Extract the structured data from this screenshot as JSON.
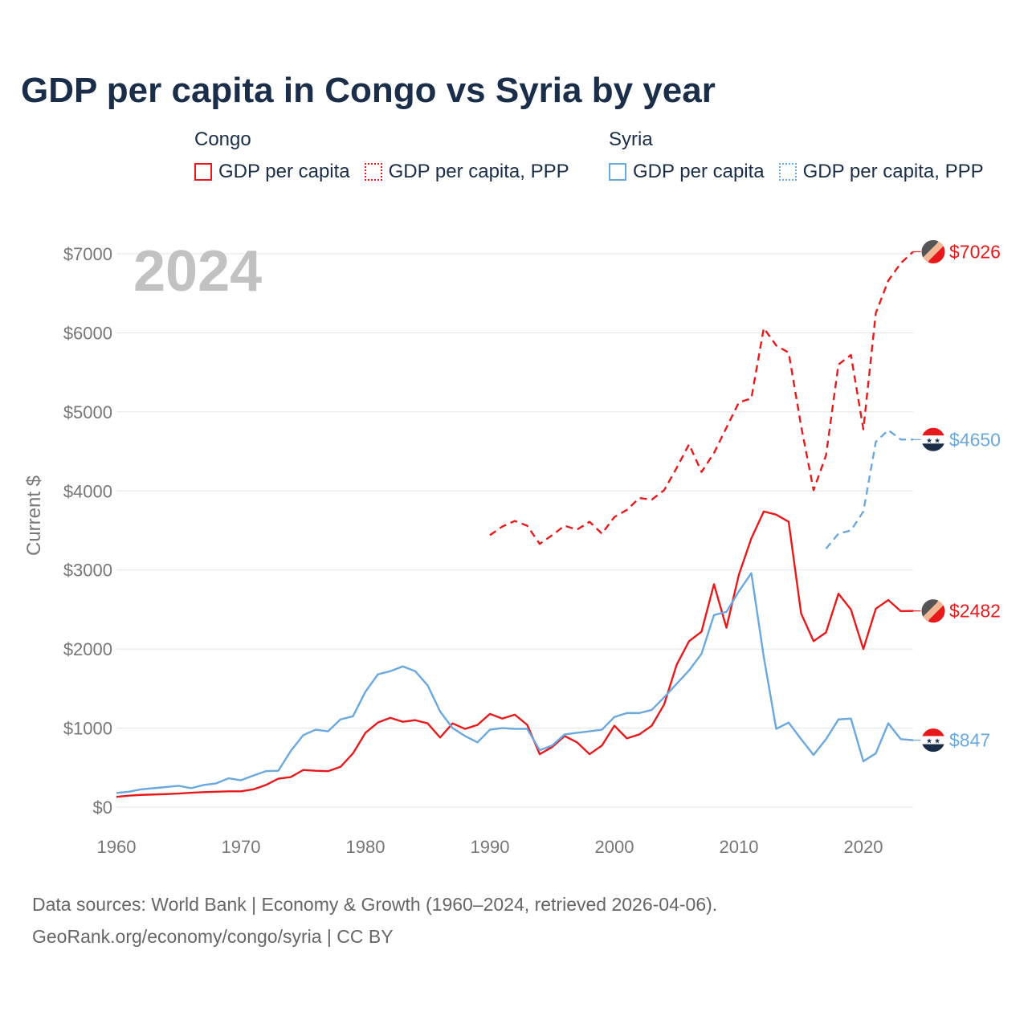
{
  "title": "GDP per capita in Congo vs Syria by year",
  "legend": {
    "congo": {
      "name": "Congo",
      "gdp": "GDP per capita",
      "ppp": "GDP per capita, PPP",
      "color": "#e8191a"
    },
    "syria": {
      "name": "Syria",
      "gdp": "GDP per capita",
      "ppp": "GDP per capita, PPP",
      "color": "#6aa8e0"
    }
  },
  "footer": {
    "line1": "Data sources: World Bank | Economy & Growth (1960–2024, retrieved 2026-04-06).",
    "line2": "GeoRank.org/economy/congo/syria | CC BY"
  },
  "chart_data": {
    "type": "line",
    "year_label": "2024",
    "ylabel": "Current $",
    "xlim": [
      1960,
      2024
    ],
    "ylim": [
      0,
      7000
    ],
    "x_ticks": [
      1960,
      1970,
      1980,
      1990,
      2000,
      2010,
      2020
    ],
    "x_tick_labels": [
      "1960",
      "1970",
      "1980",
      "1990",
      "2000",
      "2010",
      "2020"
    ],
    "y_ticks": [
      0,
      1000,
      2000,
      3000,
      4000,
      5000,
      6000,
      7000
    ],
    "y_tick_labels": [
      "$0",
      "$1000",
      "$2000",
      "$3000",
      "$4000",
      "$5000",
      "$6000",
      "$7000"
    ],
    "series": [
      {
        "name": "Congo GDP per capita",
        "color": "#e8191a",
        "dash": false,
        "end_label": "$2482",
        "marker": "congo",
        "x": [
          1960,
          1961,
          1962,
          1963,
          1964,
          1965,
          1966,
          1967,
          1968,
          1969,
          1970,
          1971,
          1972,
          1973,
          1974,
          1975,
          1976,
          1977,
          1978,
          1979,
          1980,
          1981,
          1982,
          1983,
          1984,
          1985,
          1986,
          1987,
          1988,
          1989,
          1990,
          1991,
          1992,
          1993,
          1994,
          1995,
          1996,
          1997,
          1998,
          1999,
          2000,
          2001,
          2002,
          2003,
          2004,
          2005,
          2006,
          2007,
          2008,
          2009,
          2010,
          2011,
          2012,
          2013,
          2014,
          2015,
          2016,
          2017,
          2018,
          2019,
          2020,
          2021,
          2022,
          2023,
          2024
        ],
        "values": [
          130,
          145,
          155,
          160,
          165,
          172,
          182,
          190,
          195,
          200,
          200,
          225,
          280,
          360,
          380,
          470,
          460,
          455,
          510,
          680,
          940,
          1070,
          1130,
          1080,
          1100,
          1060,
          880,
          1060,
          990,
          1040,
          1180,
          1120,
          1170,
          1040,
          670,
          760,
          900,
          820,
          670,
          780,
          1030,
          870,
          920,
          1030,
          1300,
          1800,
          2100,
          2220,
          2820,
          2270,
          2940,
          3400,
          3740,
          3700,
          3610,
          2450,
          2100,
          2210,
          2700,
          2500,
          2000,
          2510,
          2620,
          2480,
          2482
        ]
      },
      {
        "name": "Congo GDP per capita, PPP",
        "color": "#e8191a",
        "dash": true,
        "end_label": "$7026",
        "marker": "congo",
        "x": [
          1990,
          1991,
          1992,
          1993,
          1994,
          1995,
          1996,
          1997,
          1998,
          1999,
          2000,
          2001,
          2002,
          2003,
          2004,
          2005,
          2006,
          2007,
          2008,
          2009,
          2010,
          2011,
          2012,
          2013,
          2014,
          2015,
          2016,
          2017,
          2018,
          2019,
          2020,
          2021,
          2022,
          2023,
          2024
        ],
        "values": [
          3440,
          3550,
          3620,
          3560,
          3330,
          3440,
          3560,
          3510,
          3610,
          3460,
          3670,
          3760,
          3910,
          3890,
          4010,
          4290,
          4590,
          4240,
          4480,
          4800,
          5120,
          5170,
          6060,
          5840,
          5750,
          4820,
          4010,
          4450,
          5600,
          5720,
          4780,
          6250,
          6660,
          6880,
          7026
        ]
      },
      {
        "name": "Syria GDP per capita",
        "color": "#6aa8e0",
        "dash": false,
        "end_label": "$847",
        "marker": "syria",
        "x": [
          1960,
          1961,
          1962,
          1963,
          1964,
          1965,
          1966,
          1967,
          1968,
          1969,
          1970,
          1971,
          1972,
          1973,
          1974,
          1975,
          1976,
          1977,
          1978,
          1979,
          1980,
          1981,
          1982,
          1983,
          1984,
          1985,
          1986,
          1987,
          1988,
          1989,
          1990,
          1991,
          1992,
          1993,
          1994,
          1995,
          1996,
          1997,
          1998,
          1999,
          2000,
          2001,
          2002,
          2003,
          2004,
          2005,
          2006,
          2007,
          2008,
          2009,
          2010,
          2011,
          2012,
          2013,
          2014,
          2015,
          2016,
          2017,
          2018,
          2019,
          2020,
          2021,
          2022,
          2023,
          2024
        ],
        "values": [
          180,
          195,
          225,
          240,
          255,
          270,
          240,
          280,
          300,
          365,
          340,
          400,
          455,
          460,
          710,
          910,
          980,
          960,
          1110,
          1150,
          1460,
          1680,
          1720,
          1780,
          1720,
          1540,
          1210,
          1000,
          900,
          820,
          980,
          1000,
          990,
          990,
          720,
          780,
          920,
          940,
          960,
          980,
          1140,
          1190,
          1190,
          1230,
          1390,
          1560,
          1730,
          1940,
          2430,
          2470,
          2730,
          2960,
          1900,
          990,
          1070,
          860,
          660,
          860,
          1110,
          1120,
          580,
          680,
          1060,
          860,
          847
        ]
      },
      {
        "name": "Syria GDP per capita, PPP",
        "color": "#6aa8e0",
        "dash": true,
        "end_label": "$4650",
        "marker": "syria",
        "x": [
          2017,
          2018,
          2019,
          2020,
          2021,
          2022,
          2023,
          2024
        ],
        "values": [
          3270,
          3460,
          3500,
          3740,
          4620,
          4770,
          4650,
          4650
        ]
      }
    ]
  }
}
